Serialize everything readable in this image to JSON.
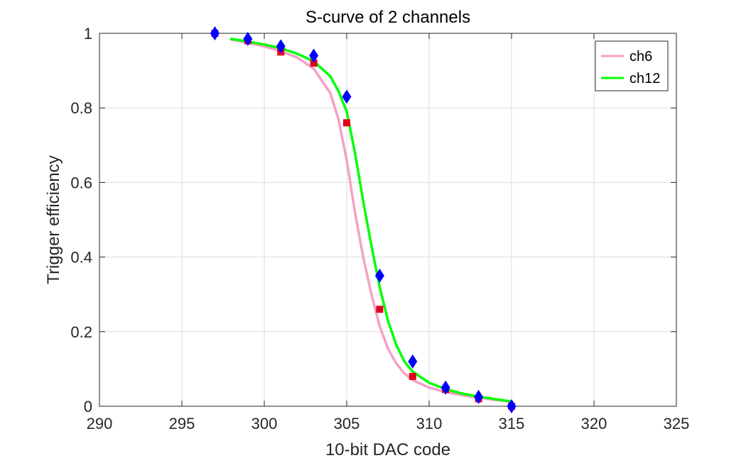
{
  "chart_data": {
    "type": "line",
    "title": "S-curve of 2 channels",
    "xlabel": "10-bit DAC code",
    "ylabel": "Trigger efficiency",
    "xlim": [
      290,
      325
    ],
    "ylim": [
      0,
      1
    ],
    "xticks": [
      290,
      295,
      300,
      305,
      310,
      315,
      320,
      325
    ],
    "yticks": [
      0,
      0.2,
      0.4,
      0.6,
      0.8,
      1
    ],
    "ytick_labels": [
      "0",
      "0.2",
      "0.4",
      "0.6",
      "0.8",
      "1"
    ],
    "grid": true,
    "legend_position": "top-right",
    "series": [
      {
        "name": "ch6",
        "color": "#f4a0c8",
        "marker": "square",
        "marker_color": "#e3001b",
        "points": {
          "x": [
            297,
            299,
            301,
            303,
            305,
            307,
            309,
            311,
            313,
            315
          ],
          "y": [
            1.0,
            0.98,
            0.95,
            0.92,
            0.76,
            0.26,
            0.08,
            0.045,
            0.02,
            0.0
          ]
        },
        "fit": {
          "x": [
            298,
            299,
            300,
            301,
            302,
            303,
            304,
            304.5,
            305,
            305.5,
            306,
            306.5,
            307,
            307.5,
            308,
            308.5,
            309,
            310,
            311,
            312,
            313,
            314,
            315
          ],
          "y": [
            0.983,
            0.975,
            0.965,
            0.952,
            0.935,
            0.905,
            0.84,
            0.77,
            0.66,
            0.52,
            0.4,
            0.3,
            0.215,
            0.155,
            0.115,
            0.088,
            0.07,
            0.05,
            0.038,
            0.03,
            0.023,
            0.017,
            0.012
          ]
        }
      },
      {
        "name": "ch12",
        "color": "#00ff00",
        "marker": "diamond",
        "marker_color": "#0000ff",
        "points": {
          "x": [
            297,
            299,
            301,
            303,
            305,
            307,
            309,
            311,
            313,
            315
          ],
          "y": [
            1.0,
            0.985,
            0.965,
            0.94,
            0.83,
            0.35,
            0.12,
            0.05,
            0.025,
            0.0
          ]
        },
        "fit": {
          "x": [
            298,
            299,
            300,
            301,
            302,
            303,
            304,
            304.5,
            305,
            305.5,
            306,
            306.5,
            307,
            307.5,
            308,
            308.5,
            309,
            310,
            311,
            312,
            313,
            314,
            315
          ],
          "y": [
            0.985,
            0.978,
            0.97,
            0.96,
            0.945,
            0.925,
            0.885,
            0.845,
            0.79,
            0.68,
            0.55,
            0.43,
            0.32,
            0.23,
            0.165,
            0.12,
            0.093,
            0.063,
            0.046,
            0.034,
            0.026,
            0.019,
            0.013
          ]
        }
      }
    ]
  }
}
